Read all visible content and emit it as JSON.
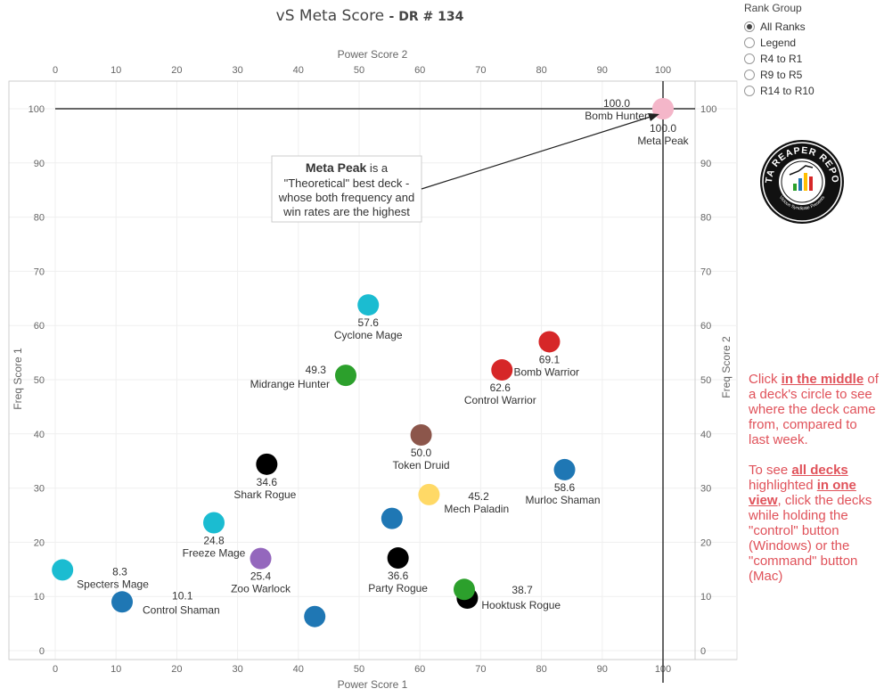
{
  "title": {
    "main": "vS Meta Score",
    "sub": "- DR # 134"
  },
  "rank_group": {
    "label": "Rank Group",
    "options": [
      {
        "label": "All Ranks",
        "selected": true
      },
      {
        "label": "Legend",
        "selected": false
      },
      {
        "label": "R4 to R1",
        "selected": false
      },
      {
        "label": "R9 to R5",
        "selected": false
      },
      {
        "label": "R14 to R10",
        "selected": false
      }
    ]
  },
  "logo": {
    "text": "DATA REAPER REPORT",
    "sub": "Vicious Syndicate Presents"
  },
  "help": {
    "p1_pre": "Click ",
    "p1_bold": "in the middle",
    "p1_post": " of a deck's circle to see where the deck came from, compared to last week.",
    "p2_pre": "To see ",
    "p2_bold1": "all decks",
    "p2_mid": " highlighted ",
    "p2_bold2": "in one view",
    "p2_post": ", click the decks while holding the \"control\" button (Windows) or the \"command\" button (Mac)"
  },
  "annotation": {
    "bold": "Meta Peak",
    "line1_rest": " is a",
    "line2": "\"Theoretical\" best deck -",
    "line3": "whose both frequency and",
    "line4": "win rates are the highest"
  },
  "chart_data": {
    "type": "scatter",
    "xlabel": "Power Score 1",
    "x2label": "Power Score 2",
    "ylabel": "Freq Score 1",
    "y2label": "Freq Score 2",
    "xlim": [
      0,
      105
    ],
    "ylim": [
      -1,
      104
    ],
    "x_ticks": [
      0,
      10,
      20,
      30,
      40,
      50,
      60,
      70,
      80,
      90,
      100
    ],
    "y_ticks": [
      0,
      10,
      20,
      30,
      40,
      50,
      60,
      70,
      80,
      90,
      100
    ],
    "reference_lines": {
      "x": 100,
      "y": 100
    },
    "points": [
      {
        "name": "Bomb Hunter",
        "score": "100.0",
        "x": 100,
        "y": 100,
        "color": "#f4b6c9"
      },
      {
        "name": "Meta Peak",
        "score": "100.0",
        "x": 100,
        "y": 100,
        "color": "#f4b6c9"
      },
      {
        "name": "Cyclone Mage",
        "score": "57.6",
        "x": 51.5,
        "y": 63.8,
        "color": "#1bbcd1"
      },
      {
        "name": "Midrange Hunter",
        "score": "49.3",
        "x": 47.8,
        "y": 50.8,
        "color": "#2ca02c"
      },
      {
        "name": "Bomb Warrior",
        "score": "69.1",
        "x": 81.3,
        "y": 57.0,
        "color": "#d62728"
      },
      {
        "name": "Control Warrior",
        "score": "62.6",
        "x": 73.5,
        "y": 51.8,
        "color": "#d62728"
      },
      {
        "name": "Token Druid",
        "score": "50.0",
        "x": 60.2,
        "y": 39.8,
        "color": "#8c564b"
      },
      {
        "name": "Shark Rogue",
        "score": "34.6",
        "x": 34.8,
        "y": 34.4,
        "color": "#000000"
      },
      {
        "name": "Murloc Shaman",
        "score": "58.6",
        "x": 83.8,
        "y": 33.4,
        "color": "#1f77b4"
      },
      {
        "name": "Mech Paladin",
        "score": "45.2",
        "x": 61.5,
        "y": 28.8,
        "color": "#ffd966"
      },
      {
        "name": "Freeze Mage",
        "score": "24.8",
        "x": 26.1,
        "y": 23.6,
        "color": "#1bbcd1"
      },
      {
        "name": "Specters Mage",
        "score": "8.3",
        "x": 1.2,
        "y": 14.9,
        "color": "#1bbcd1"
      },
      {
        "name": "Zoo Warlock",
        "score": "25.4",
        "x": 33.8,
        "y": 17.0,
        "color": "#9467bd"
      },
      {
        "name": "Party Rogue",
        "score": "36.6",
        "x": 56.4,
        "y": 17.1,
        "color": "#000000"
      },
      {
        "name": "Hooktusk Rogue",
        "score": "38.7",
        "x": 67.8,
        "y": 9.7,
        "color": "#000000"
      },
      {
        "name": "Control Shaman",
        "score": "10.1",
        "x": 11.0,
        "y": 9.0,
        "color": "#1f77b4"
      },
      {
        "name": "",
        "score": "",
        "x": 55.4,
        "y": 24.4,
        "color": "#1f77b4"
      },
      {
        "name": "",
        "score": "",
        "x": 67.3,
        "y": 11.3,
        "color": "#2ca02c"
      },
      {
        "name": "",
        "score": "",
        "x": 42.7,
        "y": 6.3,
        "color": "#1f77b4"
      }
    ]
  }
}
